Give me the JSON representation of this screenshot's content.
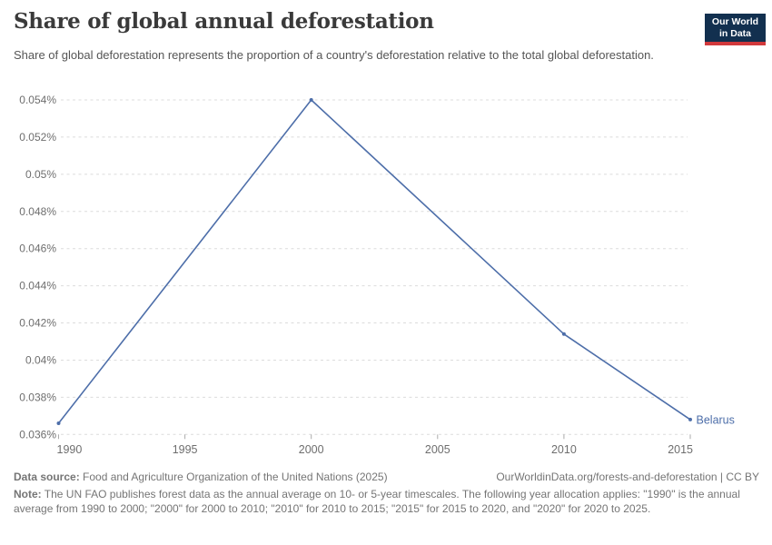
{
  "header": {
    "title": "Share of global annual deforestation",
    "subtitle": "Share of global deforestation represents the proportion of a country's deforestation relative to the total global deforestation.",
    "logo_line1": "Our World",
    "logo_line2": "in Data"
  },
  "chart_data": {
    "type": "line",
    "title": "Share of global annual deforestation",
    "series": [
      {
        "name": "Belarus",
        "color": "#4d6ea9",
        "points": [
          {
            "x": 1990,
            "y": 0.0366
          },
          {
            "x": 2000,
            "y": 0.054
          },
          {
            "x": 2010,
            "y": 0.0414
          },
          {
            "x": 2015,
            "y": 0.0368
          }
        ]
      }
    ],
    "xlabel": "",
    "ylabel": "",
    "xlim": [
      1990,
      2015
    ],
    "ylim": [
      0.036,
      0.054
    ],
    "x_ticks": [
      1990,
      1995,
      2000,
      2005,
      2010,
      2015
    ],
    "y_ticks": [
      {
        "value": 0.036,
        "label": "0.036%"
      },
      {
        "value": 0.038,
        "label": "0.038%"
      },
      {
        "value": 0.04,
        "label": "0.04%"
      },
      {
        "value": 0.042,
        "label": "0.042%"
      },
      {
        "value": 0.044,
        "label": "0.044%"
      },
      {
        "value": 0.046,
        "label": "0.046%"
      },
      {
        "value": 0.048,
        "label": "0.048%"
      },
      {
        "value": 0.05,
        "label": "0.05%"
      },
      {
        "value": 0.052,
        "label": "0.052%"
      },
      {
        "value": 0.054,
        "label": "0.054%"
      }
    ],
    "grid": "horizontal-dashed",
    "legend_position": "end-of-line-label",
    "end_label": "Belarus"
  },
  "footer": {
    "datasource_label": "Data source:",
    "datasource_text": " Food and Agriculture Organization of the United Nations (2025)",
    "citation_text": "OurWorldinData.org/forests-and-deforestation | CC BY",
    "note_label": "Note:",
    "note_text": " The UN FAO publishes forest data as the annual average on 10- or 5-year timescales. The following year allocation applies: \"1990\" is the annual average from 1990 to 2000; \"2000\" for 2000 to 2010; \"2010\" for 2010 to 2015; \"2015\" for 2015 to 2020, and \"2020\" for 2020 to 2025."
  },
  "colors": {
    "series_blue": "#4d6ea9",
    "grid": "#dcdcdc",
    "tick": "#ababab",
    "axis_text": "#6e6e6e",
    "title_text": "#3a3a3a",
    "subtitle_text": "#555555",
    "footer_text": "#757575",
    "logo_bg": "#12304f",
    "logo_stripe": "#d1393c"
  }
}
